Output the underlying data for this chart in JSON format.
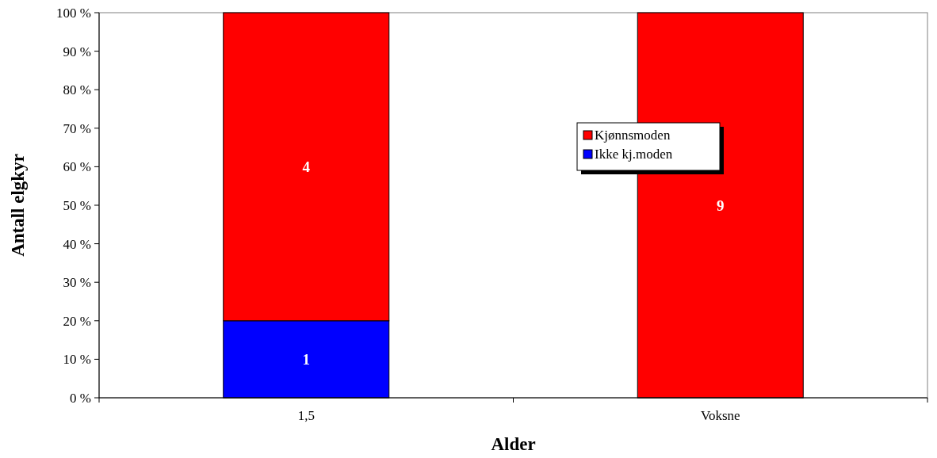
{
  "chart_data": {
    "type": "bar",
    "stacked": true,
    "xlabel": "Alder",
    "ylabel": "Antall elgkyr",
    "categories": [
      "1,5",
      "Voksne"
    ],
    "series": [
      {
        "name": "Ikke kj.moden",
        "color": "#0000ff",
        "values": [
          20,
          0
        ]
      },
      {
        "name": "Kjønnsmoden",
        "color": "#ff0000",
        "values": [
          80,
          100
        ]
      }
    ],
    "annotations": [
      "1",
      "4",
      "9"
    ],
    "ylim": [
      0,
      100
    ],
    "yticks": [
      {
        "value": 0,
        "label": "0 %"
      },
      {
        "value": 10,
        "label": "10 %"
      },
      {
        "value": 20,
        "label": "20 %"
      },
      {
        "value": 30,
        "label": "30 %"
      },
      {
        "value": 40,
        "label": "40 %"
      },
      {
        "value": 50,
        "label": "50 %"
      },
      {
        "value": 60,
        "label": "60 %"
      },
      {
        "value": 70,
        "label": "70 %"
      },
      {
        "value": 80,
        "label": "80 %"
      },
      {
        "value": 90,
        "label": "90 %"
      },
      {
        "value": 100,
        "label": "100 %"
      }
    ],
    "legend": "right",
    "grid": false
  }
}
